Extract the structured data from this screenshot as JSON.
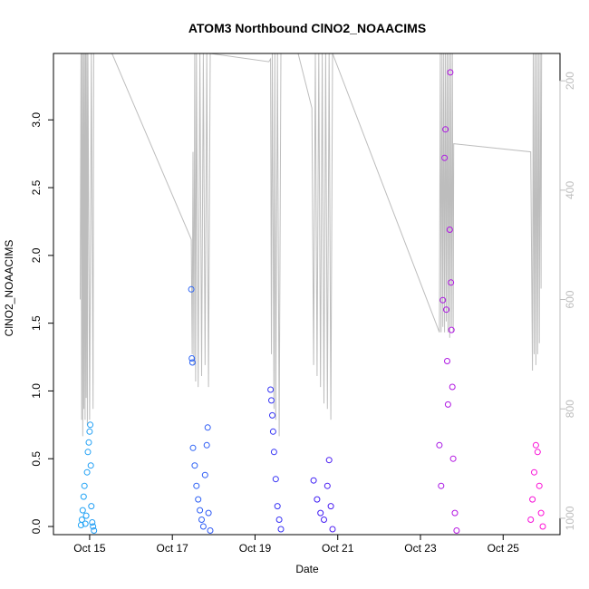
{
  "chart_data": {
    "type": "scatter",
    "title": "ATOM3 Northbound ClNO2_NOAACIMS",
    "xlabel": "Date",
    "ylabel": "ClNO2_NOAACIMS",
    "x_ticks": [
      "Oct 15",
      "Oct 17",
      "Oct 19",
      "Oct 21",
      "Oct 23",
      "Oct 25"
    ],
    "y_ticks": [
      "0.0",
      "0.5",
      "1.0",
      "1.5",
      "2.0",
      "2.5",
      "3.0"
    ],
    "y2_ticks": [
      "200",
      "400",
      "600",
      "800",
      "1000"
    ],
    "xlim": [
      "2017-10-14T03:00",
      "2017-10-26T09:00"
    ],
    "ylim": [
      -0.06,
      3.49
    ],
    "y2lim": [
      1030,
      150
    ],
    "y2_axis_reversed": true,
    "grid": false,
    "legend": "none",
    "colors": {
      "point_start": "#1fa4f5",
      "point_mid": "#3b1ef5",
      "point_end": "#ff10d6",
      "pressure_line": "#bdbdbd"
    },
    "series": [
      {
        "values": [
          {
            "x": "2017-10-14T19:00",
            "y": 0.01
          },
          {
            "x": "2017-10-14T19:30",
            "y": 0.05
          },
          {
            "x": "2017-10-14T20:00",
            "y": 0.12
          },
          {
            "x": "2017-10-14T20:30",
            "y": 0.22
          },
          {
            "x": "2017-10-14T21:00",
            "y": 0.3
          },
          {
            "x": "2017-10-14T21:30",
            "y": 0.02
          },
          {
            "x": "2017-10-14T22:00",
            "y": 0.08
          },
          {
            "x": "2017-10-14T22:30",
            "y": 0.4
          },
          {
            "x": "2017-10-14T23:00",
            "y": 0.55
          },
          {
            "x": "2017-10-14T23:30",
            "y": 0.62
          },
          {
            "x": "2017-10-15T00:00",
            "y": 0.7
          },
          {
            "x": "2017-10-15T00:20",
            "y": 0.75
          },
          {
            "x": "2017-10-15T00:40",
            "y": 0.45
          },
          {
            "x": "2017-10-15T01:00",
            "y": 0.15
          },
          {
            "x": "2017-10-15T01:30",
            "y": 0.03
          },
          {
            "x": "2017-10-15T02:00",
            "y": 0.0
          },
          {
            "x": "2017-10-15T02:30",
            "y": -0.03
          },
          {
            "x": "2017-10-17T11:00",
            "y": 1.75
          },
          {
            "x": "2017-10-17T11:20",
            "y": 1.24
          },
          {
            "x": "2017-10-17T11:40",
            "y": 1.21
          },
          {
            "x": "2017-10-17T12:00",
            "y": 0.58
          },
          {
            "x": "2017-10-17T13:00",
            "y": 0.45
          },
          {
            "x": "2017-10-17T14:00",
            "y": 0.3
          },
          {
            "x": "2017-10-17T15:00",
            "y": 0.2
          },
          {
            "x": "2017-10-17T16:00",
            "y": 0.12
          },
          {
            "x": "2017-10-17T17:00",
            "y": 0.05
          },
          {
            "x": "2017-10-17T18:00",
            "y": 0.0
          },
          {
            "x": "2017-10-17T19:00",
            "y": 0.38
          },
          {
            "x": "2017-10-17T20:00",
            "y": 0.6
          },
          {
            "x": "2017-10-17T20:30",
            "y": 0.73
          },
          {
            "x": "2017-10-17T21:00",
            "y": 0.1
          },
          {
            "x": "2017-10-17T22:00",
            "y": -0.03
          },
          {
            "x": "2017-10-19T09:00",
            "y": 1.01
          },
          {
            "x": "2017-10-19T09:30",
            "y": 0.93
          },
          {
            "x": "2017-10-19T10:00",
            "y": 0.82
          },
          {
            "x": "2017-10-19T10:30",
            "y": 0.7
          },
          {
            "x": "2017-10-19T11:00",
            "y": 0.55
          },
          {
            "x": "2017-10-19T12:00",
            "y": 0.35
          },
          {
            "x": "2017-10-19T13:00",
            "y": 0.15
          },
          {
            "x": "2017-10-19T14:00",
            "y": 0.05
          },
          {
            "x": "2017-10-19T15:00",
            "y": -0.02
          },
          {
            "x": "2017-10-20T10:00",
            "y": 0.34
          },
          {
            "x": "2017-10-20T12:00",
            "y": 0.2
          },
          {
            "x": "2017-10-20T14:00",
            "y": 0.1
          },
          {
            "x": "2017-10-20T16:00",
            "y": 0.05
          },
          {
            "x": "2017-10-20T18:00",
            "y": 0.3
          },
          {
            "x": "2017-10-20T19:00",
            "y": 0.49
          },
          {
            "x": "2017-10-20T20:00",
            "y": 0.15
          },
          {
            "x": "2017-10-20T21:00",
            "y": -0.02
          },
          {
            "x": "2017-10-23T11:00",
            "y": 0.6
          },
          {
            "x": "2017-10-23T12:00",
            "y": 0.3
          },
          {
            "x": "2017-10-23T13:00",
            "y": 1.67
          },
          {
            "x": "2017-10-23T14:00",
            "y": 2.72
          },
          {
            "x": "2017-10-23T14:30",
            "y": 2.93
          },
          {
            "x": "2017-10-23T15:00",
            "y": 1.6
          },
          {
            "x": "2017-10-23T15:30",
            "y": 1.22
          },
          {
            "x": "2017-10-23T16:00",
            "y": 0.9
          },
          {
            "x": "2017-10-23T17:00",
            "y": 2.19
          },
          {
            "x": "2017-10-23T17:20",
            "y": 3.35
          },
          {
            "x": "2017-10-23T17:40",
            "y": 1.8
          },
          {
            "x": "2017-10-23T18:00",
            "y": 1.45
          },
          {
            "x": "2017-10-23T18:30",
            "y": 1.03
          },
          {
            "x": "2017-10-23T19:00",
            "y": 0.5
          },
          {
            "x": "2017-10-23T20:00",
            "y": 0.1
          },
          {
            "x": "2017-10-23T21:00",
            "y": -0.03
          },
          {
            "x": "2017-10-25T16:00",
            "y": 0.05
          },
          {
            "x": "2017-10-25T17:00",
            "y": 0.2
          },
          {
            "x": "2017-10-25T18:00",
            "y": 0.4
          },
          {
            "x": "2017-10-25T19:00",
            "y": 0.6
          },
          {
            "x": "2017-10-25T20:00",
            "y": 0.55
          },
          {
            "x": "2017-10-25T21:00",
            "y": 0.3
          },
          {
            "x": "2017-10-25T22:00",
            "y": 0.1
          },
          {
            "x": "2017-10-25T23:00",
            "y": 0.0
          }
        ]
      }
    ],
    "pressure_series": {
      "axis": "right",
      "values": [
        {
          "x": "2017-10-14T18:30",
          "y": 600
        },
        {
          "x": "2017-10-14T19:00",
          "y": 150
        },
        {
          "x": "2017-10-14T19:20",
          "y": 820
        },
        {
          "x": "2017-10-14T19:40",
          "y": 150
        },
        {
          "x": "2017-10-14T20:00",
          "y": 850
        },
        {
          "x": "2017-10-14T20:20",
          "y": 150
        },
        {
          "x": "2017-10-14T20:40",
          "y": 800
        },
        {
          "x": "2017-10-14T21:00",
          "y": 150
        },
        {
          "x": "2017-10-14T21:20",
          "y": 820
        },
        {
          "x": "2017-10-14T21:40",
          "y": 150
        },
        {
          "x": "2017-10-14T22:00",
          "y": 780
        },
        {
          "x": "2017-10-14T22:20",
          "y": 150
        },
        {
          "x": "2017-10-14T22:40",
          "y": 830
        },
        {
          "x": "2017-10-14T23:00",
          "y": 150
        },
        {
          "x": "2017-10-15T00:00",
          "y": 820
        },
        {
          "x": "2017-10-15T01:00",
          "y": 150
        },
        {
          "x": "2017-10-15T02:00",
          "y": 800
        },
        {
          "x": "2017-10-15T02:20",
          "y": 150
        },
        {
          "x": "2017-10-15T13:00",
          "y": 150
        },
        {
          "x": "2017-10-17T11:00",
          "y": 490
        },
        {
          "x": "2017-10-17T11:30",
          "y": 700
        },
        {
          "x": "2017-10-17T12:00",
          "y": 330
        },
        {
          "x": "2017-10-17T12:30",
          "y": 720
        },
        {
          "x": "2017-10-17T13:00",
          "y": 150
        },
        {
          "x": "2017-10-17T13:30",
          "y": 750
        },
        {
          "x": "2017-10-17T14:00",
          "y": 150
        },
        {
          "x": "2017-10-17T15:00",
          "y": 760
        },
        {
          "x": "2017-10-17T16:00",
          "y": 150
        },
        {
          "x": "2017-10-17T17:00",
          "y": 740
        },
        {
          "x": "2017-10-17T18:00",
          "y": 150
        },
        {
          "x": "2017-10-17T19:00",
          "y": 720
        },
        {
          "x": "2017-10-17T20:00",
          "y": 150
        },
        {
          "x": "2017-10-17T21:00",
          "y": 760
        },
        {
          "x": "2017-10-17T22:00",
          "y": 150
        },
        {
          "x": "2017-10-19T08:00",
          "y": 165
        },
        {
          "x": "2017-10-19T09:00",
          "y": 160
        },
        {
          "x": "2017-10-19T09:30",
          "y": 700
        },
        {
          "x": "2017-10-19T10:00",
          "y": 150
        },
        {
          "x": "2017-10-19T11:00",
          "y": 800
        },
        {
          "x": "2017-10-19T11:30",
          "y": 150
        },
        {
          "x": "2017-10-19T12:00",
          "y": 820
        },
        {
          "x": "2017-10-19T13:00",
          "y": 150
        },
        {
          "x": "2017-10-19T14:00",
          "y": 850
        },
        {
          "x": "2017-10-19T15:00",
          "y": 150
        },
        {
          "x": "2017-10-20T01:00",
          "y": 150
        },
        {
          "x": "2017-10-20T09:00",
          "y": 250
        },
        {
          "x": "2017-10-20T10:00",
          "y": 720
        },
        {
          "x": "2017-10-20T11:00",
          "y": 150
        },
        {
          "x": "2017-10-20T12:00",
          "y": 740
        },
        {
          "x": "2017-10-20T13:00",
          "y": 150
        },
        {
          "x": "2017-10-20T14:00",
          "y": 760
        },
        {
          "x": "2017-10-20T15:00",
          "y": 150
        },
        {
          "x": "2017-10-20T16:00",
          "y": 790
        },
        {
          "x": "2017-10-20T17:00",
          "y": 150
        },
        {
          "x": "2017-10-20T18:00",
          "y": 800
        },
        {
          "x": "2017-10-20T19:00",
          "y": 150
        },
        {
          "x": "2017-10-20T20:00",
          "y": 820
        },
        {
          "x": "2017-10-20T21:00",
          "y": 150
        },
        {
          "x": "2017-10-23T11:00",
          "y": 660
        },
        {
          "x": "2017-10-23T11:30",
          "y": 150
        },
        {
          "x": "2017-10-23T12:00",
          "y": 660
        },
        {
          "x": "2017-10-23T12:30",
          "y": 150
        },
        {
          "x": "2017-10-23T13:00",
          "y": 650
        },
        {
          "x": "2017-10-23T13:30",
          "y": 150
        },
        {
          "x": "2017-10-23T14:00",
          "y": 660
        },
        {
          "x": "2017-10-23T14:30",
          "y": 150
        },
        {
          "x": "2017-10-23T15:00",
          "y": 640
        },
        {
          "x": "2017-10-23T15:30",
          "y": 150
        },
        {
          "x": "2017-10-23T16:00",
          "y": 660
        },
        {
          "x": "2017-10-23T16:30",
          "y": 150
        },
        {
          "x": "2017-10-23T17:00",
          "y": 670
        },
        {
          "x": "2017-10-23T17:30",
          "y": 150
        },
        {
          "x": "2017-10-23T18:00",
          "y": 650
        },
        {
          "x": "2017-10-23T18:30",
          "y": 150
        },
        {
          "x": "2017-10-23T19:00",
          "y": 660
        },
        {
          "x": "2017-10-23T19:20",
          "y": 315
        },
        {
          "x": "2017-10-25T16:00",
          "y": 330
        },
        {
          "x": "2017-10-25T17:00",
          "y": 730
        },
        {
          "x": "2017-10-25T17:30",
          "y": 150
        },
        {
          "x": "2017-10-25T18:00",
          "y": 700
        },
        {
          "x": "2017-10-25T18:30",
          "y": 150
        },
        {
          "x": "2017-10-25T19:00",
          "y": 720
        },
        {
          "x": "2017-10-25T19:30",
          "y": 150
        },
        {
          "x": "2017-10-25T20:00",
          "y": 700
        },
        {
          "x": "2017-10-25T20:30",
          "y": 150
        },
        {
          "x": "2017-10-25T21:00",
          "y": 680
        },
        {
          "x": "2017-10-25T21:30",
          "y": 150
        },
        {
          "x": "2017-10-25T22:00",
          "y": 580
        },
        {
          "x": "2017-10-25T22:20",
          "y": 150
        }
      ]
    }
  }
}
